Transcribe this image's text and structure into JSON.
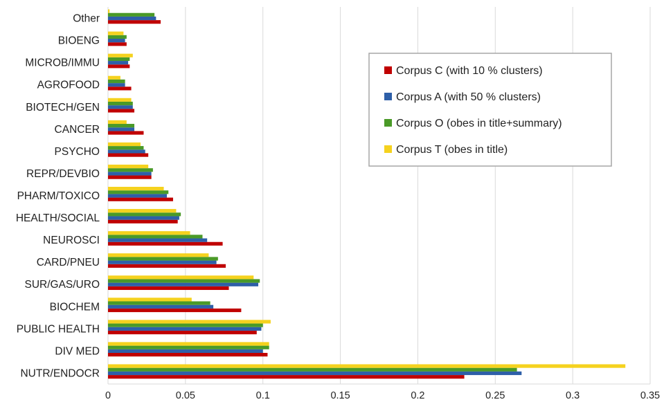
{
  "chart_data": {
    "type": "bar",
    "orientation": "horizontal",
    "categories": [
      "NUTR/ENDOCR",
      "DIV MED",
      "PUBLIC HEALTH",
      "BIOCHEM",
      "SUR/GAS/URO",
      "CARD/PNEU",
      "NEUROSCI",
      "HEALTH/SOCIAL",
      "PHARM/TOXICO",
      "REPR/DEVBIO",
      "PSYCHO",
      "CANCER",
      "BIOTECH/GEN",
      "AGROFOOD",
      "MICROB/IMMU",
      "BIOENG",
      "Other"
    ],
    "series": [
      {
        "name": "Corpus C (with 10 % clusters)",
        "color": "#c00000",
        "values": [
          0.23,
          0.103,
          0.096,
          0.086,
          0.078,
          0.076,
          0.074,
          0.045,
          0.042,
          0.028,
          0.026,
          0.023,
          0.017,
          0.015,
          0.014,
          0.012,
          0.034
        ]
      },
      {
        "name": "Corpus A (with 50 % clusters)",
        "color": "#2e5fa8",
        "values": [
          0.267,
          0.1,
          0.099,
          0.068,
          0.097,
          0.07,
          0.064,
          0.046,
          0.038,
          0.028,
          0.024,
          0.017,
          0.016,
          0.011,
          0.013,
          0.011,
          0.031
        ]
      },
      {
        "name": "Corpus O (obes in title+summary)",
        "color": "#4a9a28",
        "values": [
          0.264,
          0.104,
          0.1,
          0.066,
          0.098,
          0.071,
          0.061,
          0.047,
          0.039,
          0.029,
          0.023,
          0.017,
          0.016,
          0.011,
          0.014,
          0.012,
          0.03
        ]
      },
      {
        "name": "Corpus T (obes in title)",
        "color": "#f5d21e",
        "values": [
          0.334,
          0.104,
          0.105,
          0.054,
          0.094,
          0.065,
          0.053,
          0.044,
          0.036,
          0.026,
          0.021,
          0.012,
          0.015,
          0.008,
          0.016,
          0.01,
          0.001
        ]
      }
    ],
    "xticks": [
      "0",
      "0.05",
      "0.1",
      "0.15",
      "0.2",
      "0.25",
      "0.3",
      "0.35"
    ],
    "xlim": [
      0,
      0.35
    ],
    "title": "",
    "xlabel": "",
    "ylabel": "",
    "grid": "vertical",
    "legend_position": "top-right",
    "legend_order": [
      0,
      1,
      2,
      3
    ]
  }
}
